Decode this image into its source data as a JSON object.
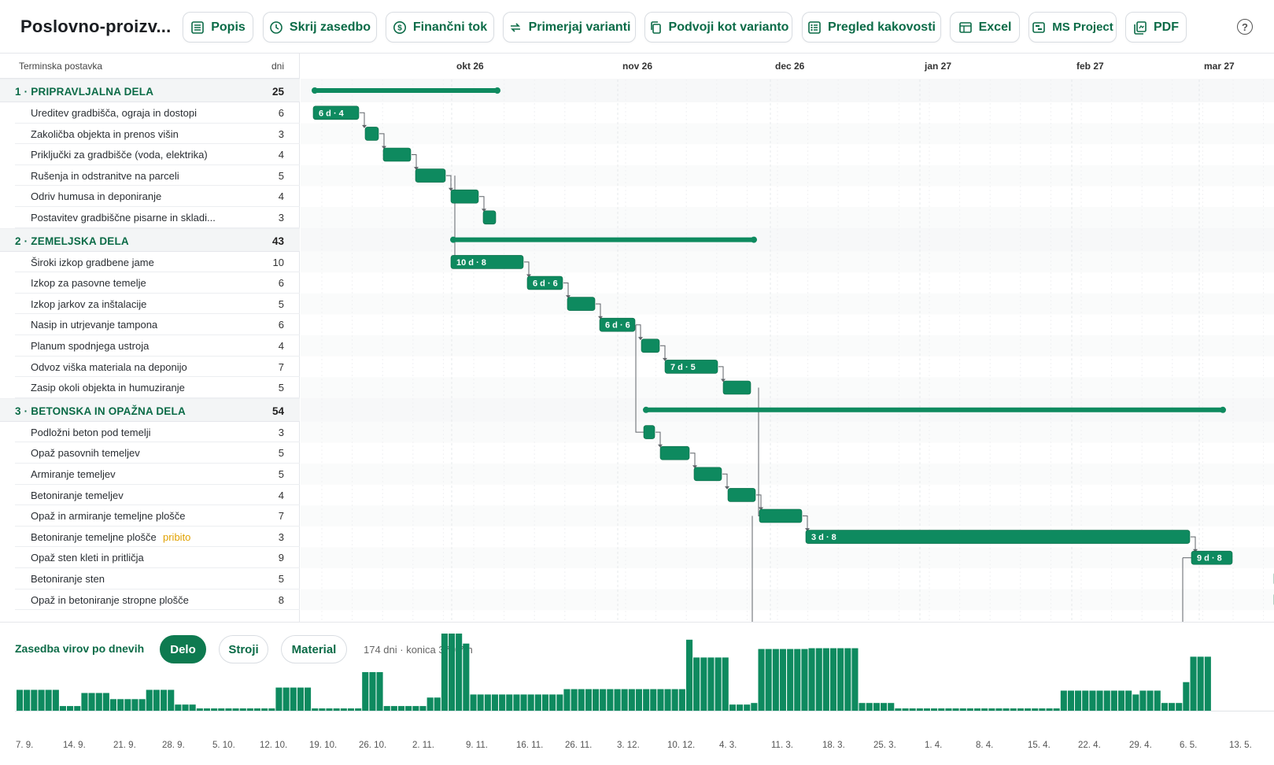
{
  "app": {
    "title": "Poslovno-proizv..."
  },
  "toolbar": [
    {
      "id": "popis",
      "label": "Popis",
      "icon": "list-icon"
    },
    {
      "id": "skrij",
      "label": "Skrij zasedbo",
      "icon": "clock-icon"
    },
    {
      "id": "financni",
      "label": "Finančni tok",
      "icon": "dollar-icon"
    },
    {
      "id": "primerjaj",
      "label": "Primerjaj varianti",
      "icon": "compare-icon"
    },
    {
      "id": "podvoji",
      "label": "Podvoji kot varianto",
      "icon": "copy-icon"
    },
    {
      "id": "kakovost",
      "label": "Pregled kakovosti",
      "icon": "checklist-icon"
    },
    {
      "id": "excel",
      "label": "Excel",
      "icon": "table-icon"
    },
    {
      "id": "msproject",
      "label": "MS Project",
      "icon": "project-icon"
    },
    {
      "id": "pdf",
      "label": "PDF",
      "icon": "pdf-icon"
    }
  ],
  "help_label": "?",
  "table": {
    "col_task": "Terminska postavka",
    "col_days": "dni"
  },
  "months": [
    "okt 26",
    "nov 26",
    "dec 26",
    "jan 27",
    "feb 27",
    "mar 27"
  ],
  "rows": [
    {
      "type": "phase",
      "name": "1 · PRIPRAVLJALNA DELA",
      "days": "25"
    },
    {
      "type": "task",
      "name": "Ureditev gradbišča, ograja in dostopi",
      "days": "6",
      "label": "6 d · 4"
    },
    {
      "type": "task",
      "name": "Zakoličba objekta in prenos višin",
      "days": "3",
      "label": ""
    },
    {
      "type": "task",
      "name": "Priključki za gradbišče (voda, elektrika)",
      "days": "4",
      "label": ""
    },
    {
      "type": "task",
      "name": "Rušenja in odstranitve na parceli",
      "days": "5",
      "label": ""
    },
    {
      "type": "task",
      "name": "Odriv humusa in deponiranje",
      "days": "4",
      "label": ""
    },
    {
      "type": "task",
      "name": "Postavitev gradbiščne pisarne in skladi...",
      "days": "3",
      "label": ""
    },
    {
      "type": "phase",
      "name": "2 · ZEMELJSKA DELA",
      "days": "43"
    },
    {
      "type": "task",
      "name": "Široki izkop gradbene jame",
      "days": "10",
      "label": "10 d · 8"
    },
    {
      "type": "task",
      "name": "Izkop za pasovne temelje",
      "days": "6",
      "label": "6 d · 6"
    },
    {
      "type": "task",
      "name": "Izkop jarkov za inštalacije",
      "days": "5",
      "label": ""
    },
    {
      "type": "task",
      "name": "Nasip in utrjevanje tampona",
      "days": "6",
      "label": "6 d · 6"
    },
    {
      "type": "task",
      "name": "Planum spodnjega ustroja",
      "days": "4",
      "label": ""
    },
    {
      "type": "task",
      "name": "Odvoz viška materiala na deponijo",
      "days": "7",
      "label": "7 d · 5"
    },
    {
      "type": "task",
      "name": "Zasip okoli objekta in humuziranje",
      "days": "5",
      "label": ""
    },
    {
      "type": "phase",
      "name": "3 · BETONSKA IN OPAŽNA DELA",
      "days": "54"
    },
    {
      "type": "task",
      "name": "Podložni beton pod temelji",
      "days": "3",
      "label": ""
    },
    {
      "type": "task",
      "name": "Opaž pasovnih temeljev",
      "days": "5",
      "label": ""
    },
    {
      "type": "task",
      "name": "Armiranje temeljev",
      "days": "5",
      "label": ""
    },
    {
      "type": "task",
      "name": "Betoniranje temeljev",
      "days": "4",
      "label": ""
    },
    {
      "type": "task",
      "name": "Opaž in armiranje temeljne plošče",
      "days": "7",
      "label": ""
    },
    {
      "type": "task",
      "name": "Betoniranje temeljne plošče",
      "days": "3",
      "pinned": "pribito",
      "label": "3 d · 8"
    },
    {
      "type": "task",
      "name": "Opaž sten kleti in pritličja",
      "days": "9",
      "label": "9 d · 8"
    },
    {
      "type": "task",
      "name": "Betoniranje sten",
      "days": "5",
      "label": ""
    },
    {
      "type": "task",
      "name": "Opaž in betoniranje stropne plošče",
      "days": "8",
      "label": ""
    }
  ],
  "resources": {
    "title": "Zasedba virov po dnevih",
    "tabs": [
      {
        "label": "Delo",
        "active": true
      },
      {
        "label": "Stroji",
        "active": false
      },
      {
        "label": "Material",
        "active": false
      }
    ],
    "stats": "174 dni · konica 379,7 h",
    "weeks": [
      "7. 9.",
      "14. 9.",
      "21. 9.",
      "28. 9.",
      "5. 10.",
      "12. 10.",
      "19. 10.",
      "26. 10.",
      "2. 11.",
      "9. 11.",
      "16. 11.",
      "26. 11.",
      "3. 12.",
      "10. 12.",
      "4. 3.",
      "11. 3.",
      "18. 3.",
      "25. 3.",
      "1. 4.",
      "8. 4.",
      "15. 4.",
      "22. 4.",
      "29. 4.",
      "6. 5.",
      "13. 5."
    ],
    "values": [
      0.27,
      0.27,
      0.27,
      0.27,
      0.27,
      0.27,
      0.06,
      0.06,
      0.06,
      0.23,
      0.23,
      0.23,
      0.23,
      0.15,
      0.15,
      0.15,
      0.15,
      0.15,
      0.27,
      0.27,
      0.27,
      0.27,
      0.08,
      0.08,
      0.08,
      0.03,
      0.03,
      0.03,
      0.03,
      0.03,
      0.03,
      0.03,
      0.03,
      0.03,
      0.03,
      0.03,
      0.3,
      0.3,
      0.3,
      0.3,
      0.3,
      0.03,
      0.03,
      0.03,
      0.03,
      0.03,
      0.03,
      0.03,
      0.5,
      0.5,
      0.5,
      0.06,
      0.06,
      0.06,
      0.06,
      0.06,
      0.06,
      0.17,
      0.17,
      1.0,
      1.0,
      1.0,
      0.87,
      0.21,
      0.21,
      0.21,
      0.21,
      0.21,
      0.21,
      0.21,
      0.21,
      0.21,
      0.21,
      0.21,
      0.21,
      0.21,
      0.28,
      0.28,
      0.28,
      0.28,
      0.28,
      0.28,
      0.28,
      0.28,
      0.28,
      0.28,
      0.28,
      0.28,
      0.28,
      0.28,
      0.28,
      0.28,
      0.28,
      0.92,
      0.69,
      0.69,
      0.69,
      0.69,
      0.69,
      0.08,
      0.08,
      0.08,
      0.1,
      0.8,
      0.8,
      0.8,
      0.8,
      0.8,
      0.8,
      0.8,
      0.81,
      0.81,
      0.81,
      0.81,
      0.81,
      0.81,
      0.81,
      0.1,
      0.1,
      0.1,
      0.1,
      0.1,
      0.03,
      0.03,
      0.03,
      0.03,
      0.03,
      0.03,
      0.03,
      0.03,
      0.03,
      0.03,
      0.03,
      0.03,
      0.03,
      0.03,
      0.03,
      0.03,
      0.03,
      0.03,
      0.03,
      0.03,
      0.03,
      0.03,
      0.03,
      0.26,
      0.26,
      0.26,
      0.26,
      0.26,
      0.26,
      0.26,
      0.26,
      0.26,
      0.26,
      0.21,
      0.26,
      0.26,
      0.26,
      0.1,
      0.1,
      0.1,
      0.37,
      0.7,
      0.7,
      0.7
    ]
  },
  "colors": {
    "accent": "#0e8a5f",
    "accent_dark": "#0b6b47",
    "pinned": "#e0a100"
  }
}
